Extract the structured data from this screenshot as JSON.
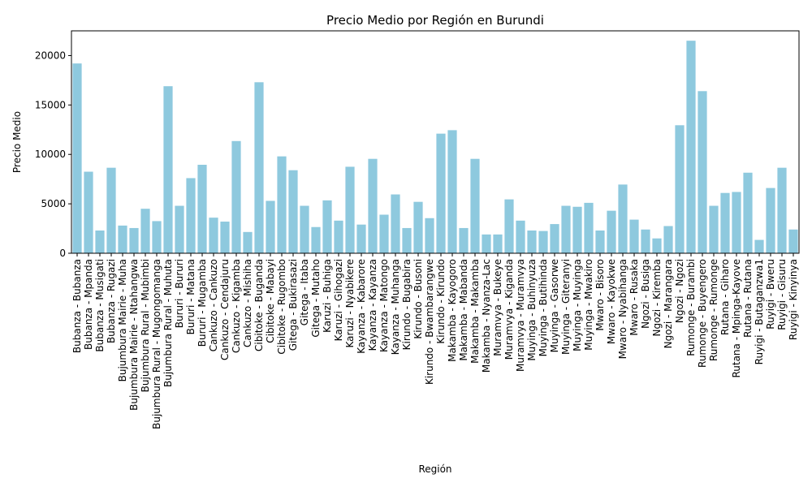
{
  "chart_data": {
    "type": "bar",
    "title": "Precio Medio por Región en Burundi",
    "xlabel": "Región",
    "ylabel": "Precio Medio",
    "ylim": [
      0,
      22500
    ],
    "yticks": [
      0,
      5000,
      10000,
      15000,
      20000
    ],
    "grid": false,
    "bar_color": "#8ec9de",
    "categories": [
      "Bubanza - Bubanza",
      "Bubanza - Mpanda",
      "Bubanza - Musigati",
      "Bubanza - Rugazi",
      "Bujumbura Mairie - Muha",
      "Bujumbura Mairie - Ntahangwa",
      "Bujumbura Rural - Mubimbi",
      "Bujumbura Rural - Mugongomanga",
      "Bujumbura Rural - Muhuta",
      "Bururi - Bururi",
      "Bururi - Matana",
      "Bururi - Mugamba",
      "Cankuzo - Cankuzo",
      "Cankuzo - Cendajuru",
      "Cankuzo - Kigamba",
      "Cankuzo - Mishiha",
      "Cibitoke - Buganda",
      "Cibitoke - Mabayi",
      "Cibitoke - Rugombo",
      "Gitega - Bukirasazi",
      "Gitega - Itaba",
      "Gitega - Mutaho",
      "Karuzi - Buhiga",
      "Karuzi - Gihogazi",
      "Karuzi - Nyabikere",
      "Kayanza - Kabarore",
      "Kayanza - Kayanza",
      "Kayanza - Matongo",
      "Kayanza - Muhanga",
      "Kirundo - Bugabira",
      "Kirundo - Busoni",
      "Kirundo - Bwambarangwe",
      "Kirundo - Kirundo",
      "Makamba - Kayogoro",
      "Makamba - Mabanda",
      "Makamba - Makamba",
      "Makamba - Nyanza-Lac",
      "Muramvya - Bukeye",
      "Muramvya - Kiganda",
      "Muramvya - Muramvya",
      "Muyinga - Buhinyuza",
      "Muyinga - Butihinda",
      "Muyinga - Gasorwe",
      "Muyinga - Giteranyi",
      "Muyinga - Muyinga",
      "Muyinga - Mwakiro",
      "Mwaro - Bisoro",
      "Mwaro - Kayokwe",
      "Mwaro - Nyabihanga",
      "Mwaro - Rusaka",
      "Ngozi - Busiga",
      "Ngozi - Kiremba",
      "Ngozi - Marangara",
      "Ngozi - Ngozi",
      "Rumonge - Burambi",
      "Rumonge - Buyengero",
      "Rumonge - Rumonge",
      "Rutana - Giharo",
      "Rutana - Mpinga-Kayove",
      "Rutana - Rutana",
      "Ruyigi - Butaganzwa1",
      "Ruyigi - Bweru",
      "Ruyigi - Gisuru",
      "Ruyigi - Kinyinya"
    ],
    "values": [
      19200,
      8250,
      2300,
      8650,
      2800,
      2550,
      4500,
      3250,
      16900,
      4800,
      7600,
      8950,
      3600,
      3200,
      11350,
      2150,
      17300,
      5300,
      9800,
      8400,
      4800,
      2650,
      5350,
      3300,
      8750,
      2900,
      9550,
      3900,
      5950,
      2550,
      5200,
      3550,
      12100,
      12450,
      2550,
      9550,
      1900,
      1900,
      5450,
      3300,
      2300,
      2250,
      2950,
      4800,
      4700,
      5100,
      2300,
      4300,
      6950,
      3400,
      2400,
      1500,
      2750,
      12950,
      21500,
      16400,
      4800,
      6100,
      6200,
      8150,
      1350,
      6600,
      8650,
      2400
    ]
  }
}
